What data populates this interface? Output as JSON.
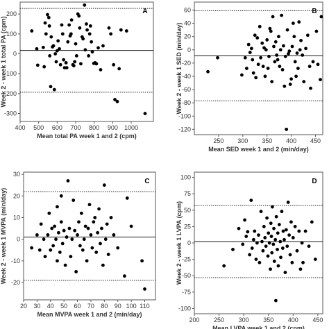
{
  "chart_data": [
    {
      "type": "scatter",
      "panel_label": "A",
      "xlabel": "Mean total PA week 1 and 2 (cpm)",
      "ylabel": "Week 2 - week 1 total PA (cpm)",
      "xlim": [
        400,
        1120
      ],
      "ylim": [
        -340,
        260
      ],
      "xticks": [
        400,
        500,
        600,
        700,
        800,
        900,
        1000
      ],
      "yticks": [
        -300,
        -200,
        -100,
        0,
        100,
        200
      ],
      "mean_line": 17,
      "limits_of_agreement": [
        228,
        -193
      ],
      "points": [
        [
          463,
          115
        ],
        [
          490,
          25
        ],
        [
          495,
          -57
        ],
        [
          525,
          32
        ],
        [
          530,
          -65
        ],
        [
          535,
          155
        ],
        [
          540,
          100
        ],
        [
          548,
          197
        ],
        [
          555,
          182
        ],
        [
          558,
          140
        ],
        [
          560,
          -10
        ],
        [
          565,
          -165
        ],
        [
          568,
          85
        ],
        [
          575,
          35
        ],
        [
          580,
          40
        ],
        [
          585,
          -180
        ],
        [
          590,
          0
        ],
        [
          595,
          -40
        ],
        [
          600,
          15
        ],
        [
          605,
          65
        ],
        [
          612,
          25
        ],
        [
          618,
          -55
        ],
        [
          625,
          145
        ],
        [
          630,
          100
        ],
        [
          635,
          -30
        ],
        [
          640,
          -70
        ],
        [
          648,
          -45
        ],
        [
          652,
          -70
        ],
        [
          658,
          60
        ],
        [
          665,
          145
        ],
        [
          670,
          90
        ],
        [
          675,
          100
        ],
        [
          678,
          170
        ],
        [
          685,
          -55
        ],
        [
          690,
          -60
        ],
        [
          695,
          -40
        ],
        [
          700,
          50
        ],
        [
          705,
          -10
        ],
        [
          712,
          200
        ],
        [
          718,
          190
        ],
        [
          722,
          130
        ],
        [
          728,
          -50
        ],
        [
          735,
          85
        ],
        [
          740,
          75
        ],
        [
          748,
          245
        ],
        [
          752,
          20
        ],
        [
          758,
          150
        ],
        [
          762,
          120
        ],
        [
          770,
          -10
        ],
        [
          776,
          100
        ],
        [
          780,
          140
        ],
        [
          785,
          60
        ],
        [
          790,
          10
        ],
        [
          798,
          -48
        ],
        [
          805,
          -45
        ],
        [
          812,
          -50
        ],
        [
          822,
          30
        ],
        [
          835,
          -80
        ],
        [
          848,
          40
        ],
        [
          880,
          130
        ],
        [
          890,
          100
        ],
        [
          905,
          -55
        ],
        [
          912,
          -230
        ],
        [
          925,
          -240
        ],
        [
          935,
          -75
        ],
        [
          945,
          120
        ],
        [
          975,
          115
        ],
        [
          1075,
          -300
        ]
      ]
    },
    {
      "type": "scatter",
      "panel_label": "B",
      "xlabel": "Mean SED week 1 and 2 (min/day)",
      "ylabel": "Week 2 - week 1 SED (min/day)",
      "xlim": [
        200,
        465
      ],
      "ylim": [
        -128,
        72
      ],
      "xticks": [
        250,
        300,
        350,
        400,
        450
      ],
      "yticks": [
        -120,
        -100,
        -80,
        -60,
        -40,
        -20,
        0,
        20,
        40,
        60
      ],
      "mean_line": -9,
      "limits_of_agreement": [
        59,
        -77
      ],
      "points": [
        [
          228,
          -33
        ],
        [
          248,
          -12
        ],
        [
          298,
          -38
        ],
        [
          305,
          -12
        ],
        [
          308,
          -28
        ],
        [
          312,
          8
        ],
        [
          315,
          -4
        ],
        [
          318,
          2
        ],
        [
          320,
          -15
        ],
        [
          322,
          -35
        ],
        [
          325,
          22
        ],
        [
          327,
          -42
        ],
        [
          330,
          18
        ],
        [
          332,
          -22
        ],
        [
          335,
          35
        ],
        [
          337,
          -12
        ],
        [
          340,
          10
        ],
        [
          342,
          -25
        ],
        [
          344,
          3
        ],
        [
          346,
          -40
        ],
        [
          348,
          0
        ],
        [
          350,
          15
        ],
        [
          352,
          -28
        ],
        [
          354,
          -10
        ],
        [
          356,
          32
        ],
        [
          358,
          28
        ],
        [
          360,
          -48
        ],
        [
          362,
          50
        ],
        [
          364,
          5
        ],
        [
          366,
          -18
        ],
        [
          368,
          12
        ],
        [
          370,
          -8
        ],
        [
          372,
          -15
        ],
        [
          374,
          20
        ],
        [
          376,
          -25
        ],
        [
          378,
          0
        ],
        [
          380,
          52
        ],
        [
          382,
          -30
        ],
        [
          384,
          6
        ],
        [
          386,
          -55
        ],
        [
          388,
          -10
        ],
        [
          390,
          -120
        ],
        [
          392,
          30
        ],
        [
          394,
          -6
        ],
        [
          396,
          -2
        ],
        [
          398,
          -52
        ],
        [
          400,
          -44
        ],
        [
          402,
          5
        ],
        [
          404,
          40
        ],
        [
          406,
          20
        ],
        [
          408,
          -18
        ],
        [
          410,
          -40
        ],
        [
          412,
          -5
        ],
        [
          414,
          -28
        ],
        [
          416,
          42
        ],
        [
          418,
          0
        ],
        [
          420,
          14
        ],
        [
          423,
          -8
        ],
        [
          426,
          -48
        ],
        [
          430,
          2
        ],
        [
          434,
          22
        ],
        [
          438,
          -25
        ],
        [
          440,
          -58
        ],
        [
          445,
          -18
        ],
        [
          452,
          28
        ],
        [
          455,
          -22
        ],
        [
          460,
          -45
        ],
        [
          462,
          50
        ]
      ]
    },
    {
      "type": "scatter",
      "panel_label": "C",
      "xlabel": "Mean MVPA week 1 and 2 (min/day)",
      "ylabel": "Week 2 - week 1 MVPA (min/day)",
      "xlim": [
        20,
        118
      ],
      "ylim": [
        -28,
        31
      ],
      "xticks": [
        20,
        30,
        40,
        50,
        60,
        70,
        80,
        90,
        100,
        110
      ],
      "yticks": [
        -20,
        -10,
        0,
        10,
        20,
        30
      ],
      "mean_line": 1,
      "limits_of_agreement": [
        22,
        -19
      ],
      "points": [
        [
          26,
          -4
        ],
        [
          30,
          2
        ],
        [
          32,
          -5
        ],
        [
          33,
          7
        ],
        [
          35,
          0
        ],
        [
          36,
          -8
        ],
        [
          38,
          2
        ],
        [
          39,
          12
        ],
        [
          40,
          -5
        ],
        [
          41,
          5
        ],
        [
          42,
          -3
        ],
        [
          43,
          6
        ],
        [
          44,
          0
        ],
        [
          45,
          -10
        ],
        [
          45,
          15
        ],
        [
          46,
          3
        ],
        [
          47,
          -6
        ],
        [
          48,
          20
        ],
        [
          48,
          8
        ],
        [
          49,
          -2
        ],
        [
          50,
          4
        ],
        [
          51,
          -12
        ],
        [
          52,
          1
        ],
        [
          53,
          27
        ],
        [
          54,
          5
        ],
        [
          55,
          -8
        ],
        [
          56,
          0
        ],
        [
          57,
          18
        ],
        [
          58,
          4
        ],
        [
          59,
          -15
        ],
        [
          60,
          2
        ],
        [
          61,
          8
        ],
        [
          62,
          -3
        ],
        [
          63,
          12
        ],
        [
          64,
          -5
        ],
        [
          65,
          0
        ],
        [
          66,
          6
        ],
        [
          67,
          -10
        ],
        [
          68,
          5
        ],
        [
          69,
          16
        ],
        [
          70,
          2
        ],
        [
          71,
          -4
        ],
        [
          72,
          8
        ],
        [
          73,
          10
        ],
        [
          74,
          -6
        ],
        [
          75,
          3
        ],
        [
          76,
          14
        ],
        [
          77,
          -2
        ],
        [
          78,
          5
        ],
        [
          79,
          -12
        ],
        [
          80,
          25
        ],
        [
          81,
          0
        ],
        [
          82,
          7
        ],
        [
          83,
          -7
        ],
        [
          85,
          10
        ],
        [
          87,
          2
        ],
        [
          90,
          -4
        ],
        [
          95,
          -17
        ],
        [
          97,
          19
        ],
        [
          100,
          6
        ],
        [
          108,
          -10
        ],
        [
          110,
          -23
        ]
      ]
    },
    {
      "type": "scatter",
      "panel_label": "D",
      "xlabel": "Mean LVPA week 1 and 2 (cpm)",
      "ylabel": "Week 2 - week 1 LVPA (cpm)",
      "xlim": [
        200,
        460
      ],
      "ylim": [
        -108,
        108
      ],
      "xticks": [
        200,
        250,
        300,
        350,
        400,
        450
      ],
      "yticks": [
        -100,
        -75,
        -50,
        -25,
        0,
        25,
        50,
        75,
        100
      ],
      "mean_line": 2,
      "limits_of_agreement": [
        57,
        -53
      ],
      "points": [
        [
          260,
          -35
        ],
        [
          278,
          -10
        ],
        [
          290,
          22
        ],
        [
          298,
          -2
        ],
        [
          302,
          35
        ],
        [
          305,
          10
        ],
        [
          308,
          17
        ],
        [
          312,
          -18
        ],
        [
          315,
          65
        ],
        [
          317,
          -8
        ],
        [
          320,
          5
        ],
        [
          322,
          18
        ],
        [
          325,
          -25
        ],
        [
          327,
          0
        ],
        [
          330,
          12
        ],
        [
          332,
          -30
        ],
        [
          335,
          48
        ],
        [
          337,
          2
        ],
        [
          339,
          -12
        ],
        [
          341,
          25
        ],
        [
          343,
          8
        ],
        [
          345,
          -5
        ],
        [
          347,
          38
        ],
        [
          349,
          -20
        ],
        [
          350,
          15
        ],
        [
          352,
          0
        ],
        [
          354,
          -40
        ],
        [
          355,
          30
        ],
        [
          356,
          10
        ],
        [
          357,
          -15
        ],
        [
          358,
          55
        ],
        [
          360,
          -2
        ],
        [
          361,
          22
        ],
        [
          362,
          -28
        ],
        [
          364,
          5
        ],
        [
          365,
          -88
        ],
        [
          366,
          40
        ],
        [
          368,
          -10
        ],
        [
          369,
          15
        ],
        [
          370,
          -35
        ],
        [
          372,
          28
        ],
        [
          374,
          2
        ],
        [
          375,
          -22
        ],
        [
          377,
          48
        ],
        [
          379,
          -8
        ],
        [
          380,
          18
        ],
        [
          382,
          5
        ],
        [
          384,
          -45
        ],
        [
          386,
          20
        ],
        [
          388,
          -5
        ],
        [
          390,
          62
        ],
        [
          392,
          12
        ],
        [
          394,
          -18
        ],
        [
          396,
          32
        ],
        [
          398,
          -30
        ],
        [
          400,
          8
        ],
        [
          404,
          25
        ],
        [
          408,
          -12
        ],
        [
          412,
          18
        ],
        [
          415,
          -40
        ],
        [
          418,
          0
        ],
        [
          420,
          -30
        ],
        [
          425,
          18
        ],
        [
          432,
          -5
        ],
        [
          438,
          32
        ],
        [
          445,
          -25
        ]
      ]
    }
  ]
}
